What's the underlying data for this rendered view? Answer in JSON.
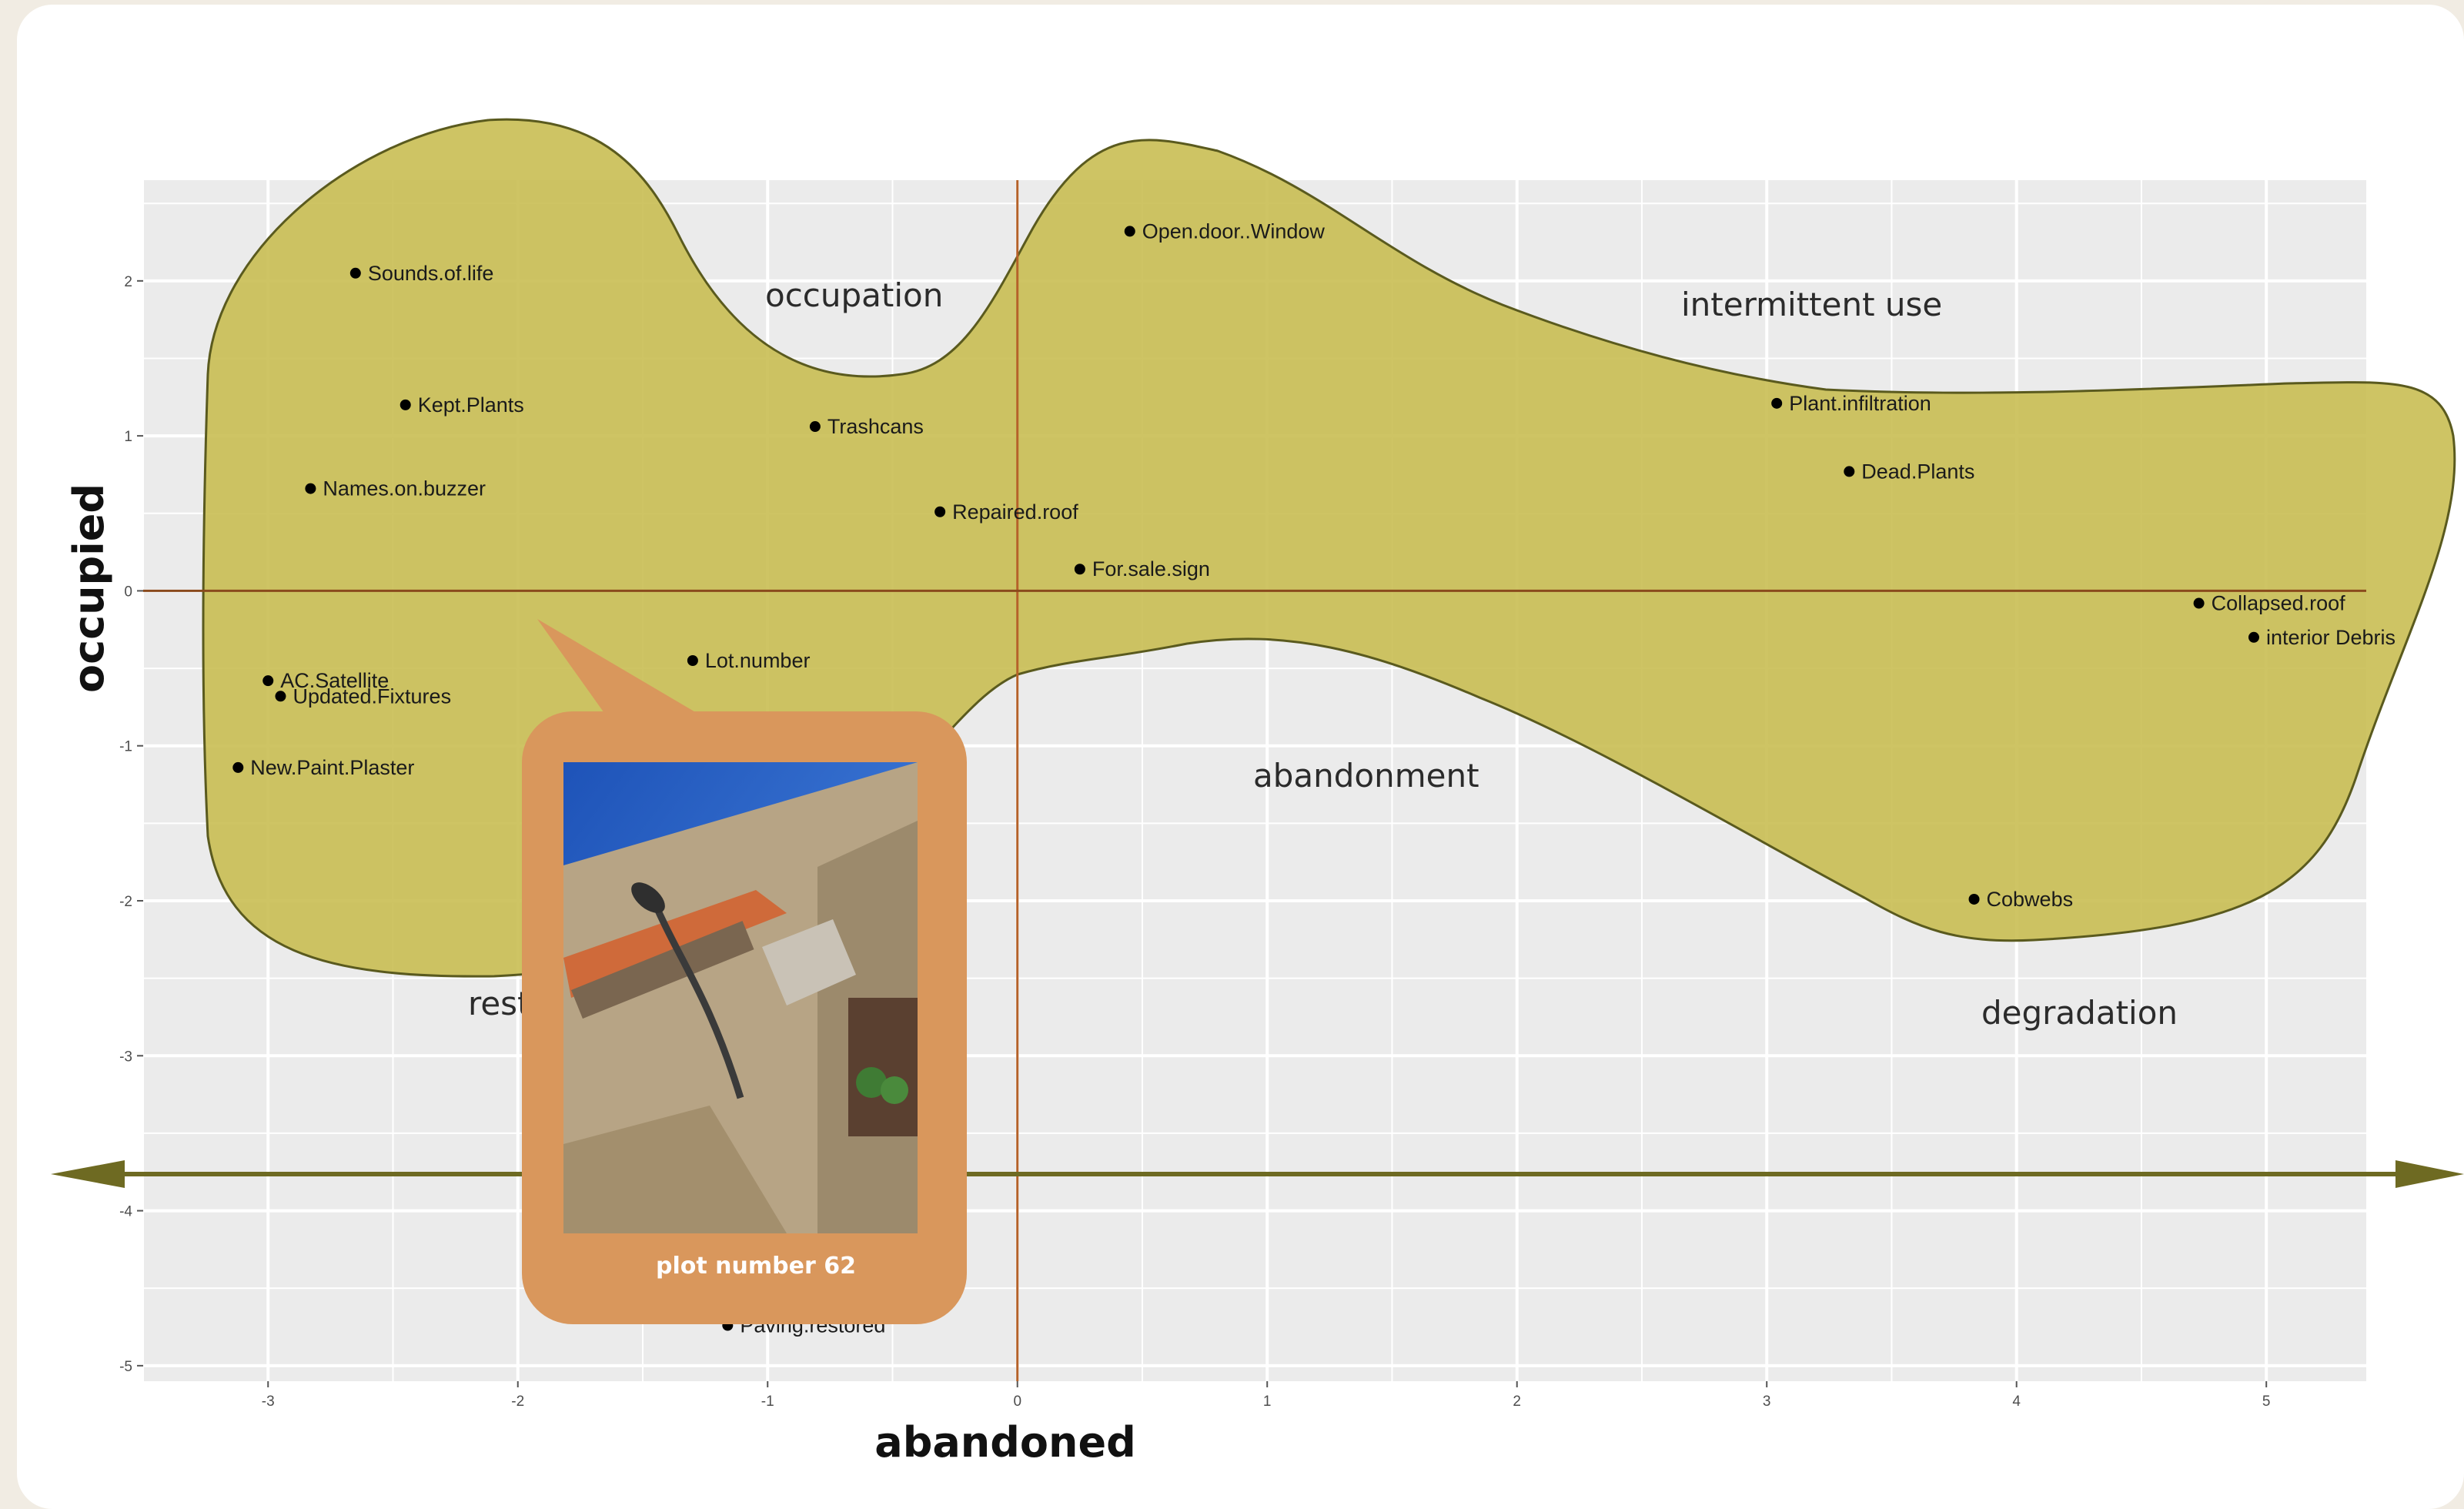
{
  "chart_data": {
    "type": "scatter",
    "xlabel": "abandoned",
    "ylabel": "occupied",
    "xlim": [
      -3.5,
      5.4
    ],
    "ylim": [
      -5.1,
      2.65
    ],
    "grid": true,
    "x_ticks": [
      -3,
      -2,
      -1,
      0,
      1,
      2,
      3,
      4,
      5
    ],
    "y_ticks": [
      2,
      1,
      0,
      -1,
      -2,
      -3,
      -4,
      -5
    ],
    "points": [
      {
        "label": "Sounds.of.life",
        "x": -2.65,
        "y": 2.05
      },
      {
        "label": "Kept.Plants",
        "x": -2.45,
        "y": 1.2
      },
      {
        "label": "Names.on.buzzer",
        "x": -2.83,
        "y": 0.66
      },
      {
        "label": "AC.Satellite",
        "x": -3.0,
        "y": -0.58
      },
      {
        "label": "Updated.Fixtures",
        "x": -2.95,
        "y": -0.68
      },
      {
        "label": "New.Paint.Plaster",
        "x": -3.12,
        "y": -1.14
      },
      {
        "label": "Trashcans",
        "x": -0.81,
        "y": 1.06
      },
      {
        "label": "Repaired.roof",
        "x": -0.31,
        "y": 0.51
      },
      {
        "label": "Lot.number",
        "x": -1.3,
        "y": -0.45
      },
      {
        "label": "Paving.restored",
        "x": -1.16,
        "y": -4.74
      },
      {
        "label": "Open.door..Window",
        "x": 0.45,
        "y": 2.32
      },
      {
        "label": "For.sale.sign",
        "x": 0.25,
        "y": 0.14
      },
      {
        "label": "Plant.infiltration",
        "x": 3.04,
        "y": 1.21
      },
      {
        "label": "Dead.Plants",
        "x": 3.33,
        "y": 0.77
      },
      {
        "label": "Collapsed.roof",
        "x": 4.73,
        "y": -0.08
      },
      {
        "label": "interior Debris",
        "x": 4.95,
        "y": -0.3
      },
      {
        "label": "Cobwebs",
        "x": 3.83,
        "y": -1.99
      }
    ],
    "reference_lines": {
      "x": 0,
      "y": 0
    }
  },
  "regions": {
    "occupation": "occupation",
    "intermittent_use": "intermittent use",
    "abandonment": "abandonment",
    "degradation": "degradation",
    "restoration_partial": "rest"
  },
  "callout": {
    "title": "plot number 62",
    "photo_subject": "street-lamp-and-building-photo"
  },
  "colors": {
    "blob_fill": "#c7bc4f",
    "blob_stroke": "#5a5a1e",
    "arrow": "#6e6a22",
    "crosshair": "#b5622a",
    "callout": "#d9975c",
    "panel": "#ebebeb"
  }
}
